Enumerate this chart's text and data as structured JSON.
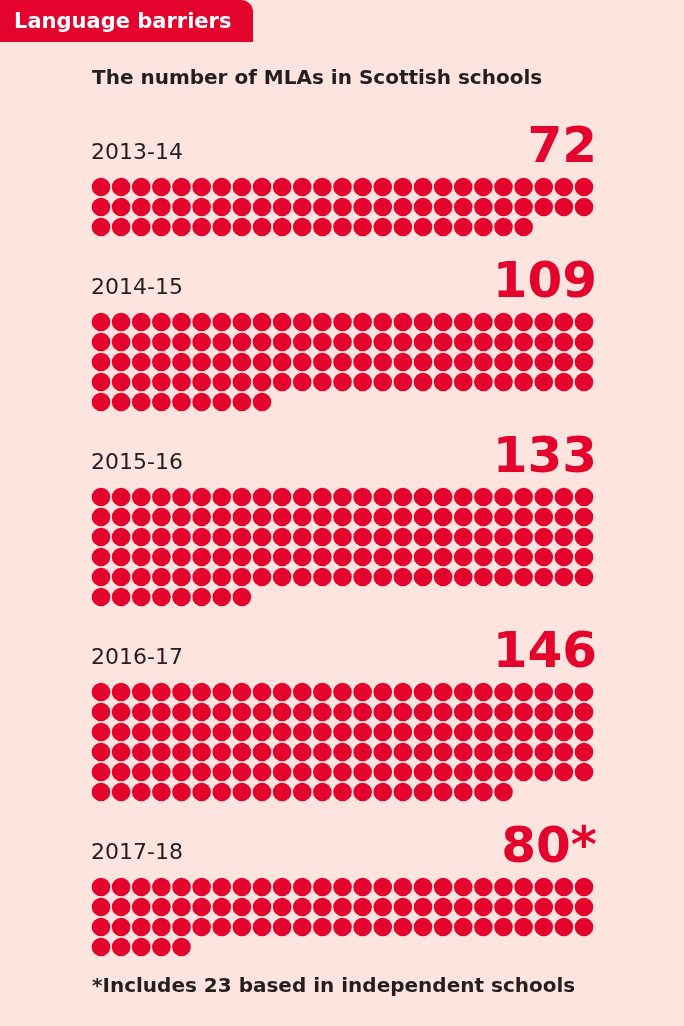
{
  "chart_data": {
    "type": "other",
    "title": "Language barriers",
    "subtitle": "The number of MLAs in Scottish schools",
    "categories": [
      "2013-14",
      "2014-15",
      "2015-16",
      "2016-17",
      "2017-18"
    ],
    "values": [
      72,
      109,
      133,
      146,
      80
    ],
    "value_labels": [
      "72",
      "109",
      "133",
      "146",
      "80*"
    ],
    "color": "#e4032d",
    "annotations": [
      "*Includes 23 based in independent schools"
    ]
  }
}
